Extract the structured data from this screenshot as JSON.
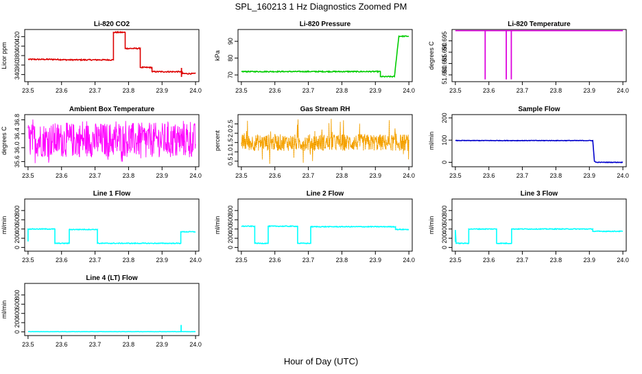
{
  "figure": {
    "title": "SPL_160213  1 Hz Diagnostics Zoomed PM",
    "xlabel": "Hour of Day (UTC)"
  },
  "chart_data": [
    {
      "type": "line",
      "title": "Li-820 CO2",
      "ylabel": "Licor ppm",
      "color": "#dd0000",
      "xlim": [
        23.49,
        24.01
      ],
      "ylim": [
        325,
        435
      ],
      "xticks": [
        23.5,
        23.6,
        23.7,
        23.8,
        23.9,
        24.0
      ],
      "yticks": [
        340,
        360,
        380,
        400,
        420
      ],
      "segments": [
        [
          23.5,
          24.0
        ]
      ],
      "points": [
        [
          23.5,
          372
        ],
        [
          23.58,
          372
        ],
        [
          23.62,
          371
        ],
        [
          23.755,
          371
        ],
        [
          23.755,
          429
        ],
        [
          23.79,
          429
        ],
        [
          23.79,
          395
        ],
        [
          23.835,
          395
        ],
        [
          23.835,
          355
        ],
        [
          23.87,
          355
        ],
        [
          23.87,
          346
        ],
        [
          23.96,
          346
        ],
        [
          23.96,
          342
        ],
        [
          24.0,
          342
        ]
      ],
      "noise": 1.2,
      "spikes": [
        [
          23.958,
          335,
          354
        ]
      ]
    },
    {
      "type": "line",
      "title": "Li-820 Pressure",
      "ylabel": "kPa",
      "color": "#00cc00",
      "xlim": [
        23.49,
        24.01
      ],
      "ylim": [
        66,
        97
      ],
      "xticks": [
        23.5,
        23.6,
        23.7,
        23.8,
        23.9,
        24.0
      ],
      "yticks": [
        70,
        80,
        90
      ],
      "points": [
        [
          23.5,
          72
        ],
        [
          23.915,
          72
        ],
        [
          23.915,
          69
        ],
        [
          23.957,
          69
        ],
        [
          23.97,
          93
        ],
        [
          24.0,
          93
        ]
      ],
      "noise": 0.3,
      "spikes": []
    },
    {
      "type": "line",
      "title": "Li-820 Temperature",
      "ylabel": "degrees C",
      "color": "#dd00dd",
      "xlim": [
        23.49,
        24.01
      ],
      "ylim": [
        51.677,
        51.7
      ],
      "xticks": [
        23.5,
        23.6,
        23.7,
        23.8,
        23.9,
        24.0
      ],
      "yticks": [
        51.68,
        51.685,
        51.69,
        51.695
      ],
      "points": [
        [
          23.5,
          51.6995
        ],
        [
          24.0,
          51.6995
        ]
      ],
      "noise": 0,
      "spikes": [
        [
          23.589,
          51.678,
          51.6995
        ],
        [
          23.652,
          51.678,
          51.6995
        ],
        [
          23.667,
          51.678,
          51.6995
        ]
      ]
    },
    {
      "type": "noise-band",
      "title": "Ambient Box Temperature",
      "ylabel": "degrees C",
      "color": "#ff00ff",
      "xlim": [
        23.49,
        24.01
      ],
      "ylim": [
        35.45,
        36.95
      ],
      "xticks": [
        23.5,
        23.6,
        23.7,
        23.8,
        23.9,
        24.0
      ],
      "yticks": [
        35.6,
        36.0,
        36.4,
        36.8
      ],
      "band": [
        35.72,
        36.72
      ],
      "spike_range": [
        35.55,
        36.85
      ]
    },
    {
      "type": "noise-band",
      "title": "Gas Stream RH",
      "ylabel": "percent",
      "color": "#ffaa00",
      "xlim": [
        23.49,
        24.01
      ],
      "ylim": [
        0.2,
        3.0
      ],
      "xticks": [
        23.5,
        23.6,
        23.7,
        23.8,
        23.9,
        24.0
      ],
      "yticks": [
        0.5,
        1.0,
        1.5,
        2.0,
        2.5
      ],
      "band": [
        1.05,
        1.95
      ],
      "spike_range": [
        0.3,
        2.8
      ]
    },
    {
      "type": "line",
      "title": "Sample Flow",
      "ylabel": "ml/min",
      "color": "#0000cc",
      "xlim": [
        23.49,
        24.01
      ],
      "ylim": [
        -20,
        215
      ],
      "xticks": [
        23.5,
        23.6,
        23.7,
        23.8,
        23.9,
        24.0
      ],
      "yticks": [
        0,
        100,
        200
      ],
      "points": [
        [
          23.5,
          98
        ],
        [
          23.91,
          98
        ],
        [
          23.915,
          5
        ],
        [
          23.92,
          0
        ],
        [
          24.0,
          0
        ]
      ],
      "noise": 1.2,
      "spikes": []
    },
    {
      "type": "line",
      "title": "Line 1 Flow",
      "ylabel": "ml/min",
      "color": "#00ffff",
      "xlim": [
        23.49,
        24.01
      ],
      "ylim": [
        -80,
        1050
      ],
      "xticks": [
        23.5,
        23.6,
        23.7,
        23.8,
        23.9,
        24.0
      ],
      "yticks": [
        0,
        200,
        400,
        600,
        800
      ],
      "points": [
        [
          23.5,
          130
        ],
        [
          23.5,
          400
        ],
        [
          23.58,
          400
        ],
        [
          23.58,
          90
        ],
        [
          23.623,
          90
        ],
        [
          23.623,
          390
        ],
        [
          23.707,
          390
        ],
        [
          23.707,
          90
        ],
        [
          23.956,
          90
        ],
        [
          23.956,
          340
        ],
        [
          24.0,
          340
        ]
      ],
      "noise": 8,
      "spikes": []
    },
    {
      "type": "line",
      "title": "Line 2 Flow",
      "ylabel": "ml/min",
      "color": "#00ffff",
      "xlim": [
        23.49,
        24.01
      ],
      "ylim": [
        -80,
        1050
      ],
      "xticks": [
        23.5,
        23.6,
        23.7,
        23.8,
        23.9,
        24.0
      ],
      "yticks": [
        0,
        200,
        400,
        600,
        800
      ],
      "points": [
        [
          23.5,
          460
        ],
        [
          23.54,
          460
        ],
        [
          23.54,
          90
        ],
        [
          23.58,
          90
        ],
        [
          23.58,
          460
        ],
        [
          23.668,
          460
        ],
        [
          23.668,
          90
        ],
        [
          23.707,
          90
        ],
        [
          23.707,
          450
        ],
        [
          23.96,
          450
        ],
        [
          23.96,
          390
        ],
        [
          24.0,
          390
        ]
      ],
      "noise": 8,
      "spikes": []
    },
    {
      "type": "line",
      "title": "Line 3 Flow",
      "ylabel": "ml/min",
      "color": "#00ffff",
      "xlim": [
        23.49,
        24.01
      ],
      "ylim": [
        -80,
        1050
      ],
      "xticks": [
        23.5,
        23.6,
        23.7,
        23.8,
        23.9,
        24.0
      ],
      "yticks": [
        0,
        200,
        400,
        600,
        800
      ],
      "points": [
        [
          23.5,
          120
        ],
        [
          23.5,
          380
        ],
        [
          23.502,
          120
        ],
        [
          23.502,
          90
        ],
        [
          23.54,
          90
        ],
        [
          23.54,
          400
        ],
        [
          23.623,
          400
        ],
        [
          23.623,
          90
        ],
        [
          23.668,
          90
        ],
        [
          23.668,
          400
        ],
        [
          23.91,
          400
        ],
        [
          23.91,
          350
        ],
        [
          24.0,
          350
        ]
      ],
      "noise": 8,
      "spikes": []
    },
    {
      "type": "line",
      "title": "Line 4 (LT) Flow",
      "ylabel": "ml/min",
      "color": "#00ffff",
      "xlim": [
        23.49,
        24.01
      ],
      "ylim": [
        -80,
        1050
      ],
      "xticks": [
        23.5,
        23.6,
        23.7,
        23.8,
        23.9,
        24.0
      ],
      "yticks": [
        0,
        200,
        400,
        600,
        800
      ],
      "points": [
        [
          23.5,
          5
        ],
        [
          24.0,
          5
        ]
      ],
      "noise": 2,
      "spikes": [
        [
          23.957,
          5,
          150
        ]
      ]
    }
  ]
}
